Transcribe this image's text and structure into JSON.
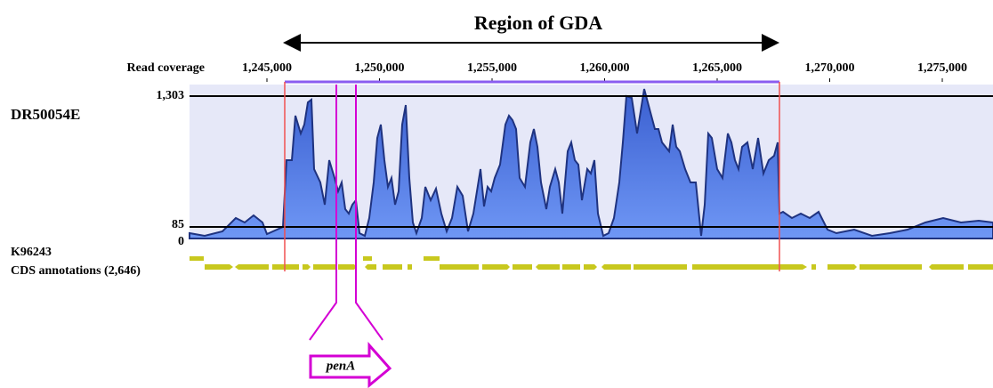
{
  "header": {
    "title": "Region of GDA"
  },
  "ruler": {
    "label": "Read coverage",
    "ticks": [
      "1,245,000",
      "1,250,000",
      "1,255,000",
      "1,260,000",
      "1,265,000",
      "1,270,000",
      "1,275,000"
    ]
  },
  "track": {
    "name": "DR50054E",
    "levels": [
      "1,303",
      "85",
      "0"
    ]
  },
  "annotation": {
    "genome": "K96243",
    "label": "CDS annotations (2,646)"
  },
  "gene": {
    "label": "penA"
  }
}
